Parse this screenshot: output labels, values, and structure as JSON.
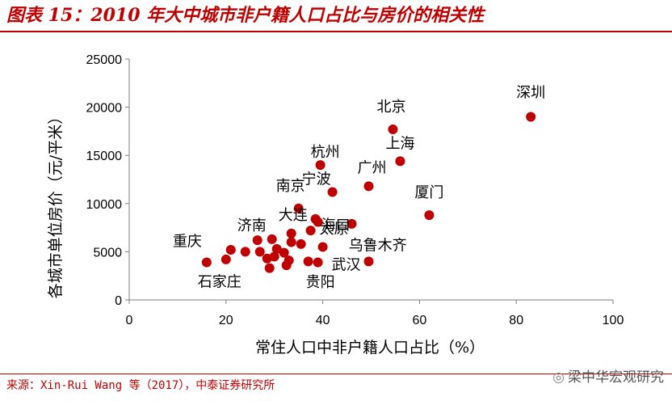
{
  "title": "图表 15：2010 年大中城市非户籍人口占比与房价的相关性",
  "source": "来源：Xin-Rui Wang 等（2017），中泰证券研究所",
  "watermark": "梁中华宏观研究",
  "watermark_icon": "wechat-icon",
  "colors": {
    "accent": "#c00000",
    "marker": "#c00000"
  },
  "chart_data": {
    "type": "scatter",
    "xlabel": "常住人口中非户籍人口占比（%）",
    "ylabel": "各城市单位房价（元/平米）",
    "xlim": [
      0,
      100
    ],
    "ylim": [
      0,
      25000
    ],
    "xticks": [
      0,
      20,
      40,
      60,
      80,
      100
    ],
    "yticks": [
      0,
      5000,
      10000,
      15000,
      20000,
      25000
    ],
    "grid": false,
    "legend": "none",
    "points": [
      {
        "x": 83,
        "y": 19000,
        "label": "深圳"
      },
      {
        "x": 54.5,
        "y": 17700,
        "label": "北京"
      },
      {
        "x": 56,
        "y": 14400,
        "label": "上海"
      },
      {
        "x": 39.5,
        "y": 14000,
        "label": "杭州"
      },
      {
        "x": 49.5,
        "y": 11800,
        "label": "广州"
      },
      {
        "x": 42,
        "y": 11200,
        "label": "宁波"
      },
      {
        "x": 35,
        "y": 9500,
        "label": "南京"
      },
      {
        "x": 62,
        "y": 8800,
        "label": "厦门"
      },
      {
        "x": 38.5,
        "y": 8400
      },
      {
        "x": 39,
        "y": 8100,
        "label": "海口"
      },
      {
        "x": 46,
        "y": 7900,
        "label": "太原"
      },
      {
        "x": 37.5,
        "y": 7200
      },
      {
        "x": 33.5,
        "y": 6900
      },
      {
        "x": 29.5,
        "y": 6300,
        "label": "大连"
      },
      {
        "x": 26.5,
        "y": 6200,
        "label": "济南"
      },
      {
        "x": 33.5,
        "y": 6000
      },
      {
        "x": 35.5,
        "y": 5800
      },
      {
        "x": 40,
        "y": 5500,
        "label": "乌鲁木齐"
      },
      {
        "x": 30.5,
        "y": 5300
      },
      {
        "x": 21,
        "y": 5200
      },
      {
        "x": 24,
        "y": 5000
      },
      {
        "x": 27,
        "y": 5000
      },
      {
        "x": 32,
        "y": 4900
      },
      {
        "x": 30,
        "y": 4500
      },
      {
        "x": 28.5,
        "y": 4300
      },
      {
        "x": 20,
        "y": 4200
      },
      {
        "x": 33,
        "y": 4100
      },
      {
        "x": 37,
        "y": 4000
      },
      {
        "x": 39,
        "y": 3900
      },
      {
        "x": 49.5,
        "y": 4000,
        "label": "武汉"
      },
      {
        "x": 16,
        "y": 3900,
        "label": "重庆"
      },
      {
        "x": 32.5,
        "y": 3600
      },
      {
        "x": 29,
        "y": 3300,
        "label": "石家庄"
      },
      {
        "label": "贵阳"
      }
    ]
  }
}
